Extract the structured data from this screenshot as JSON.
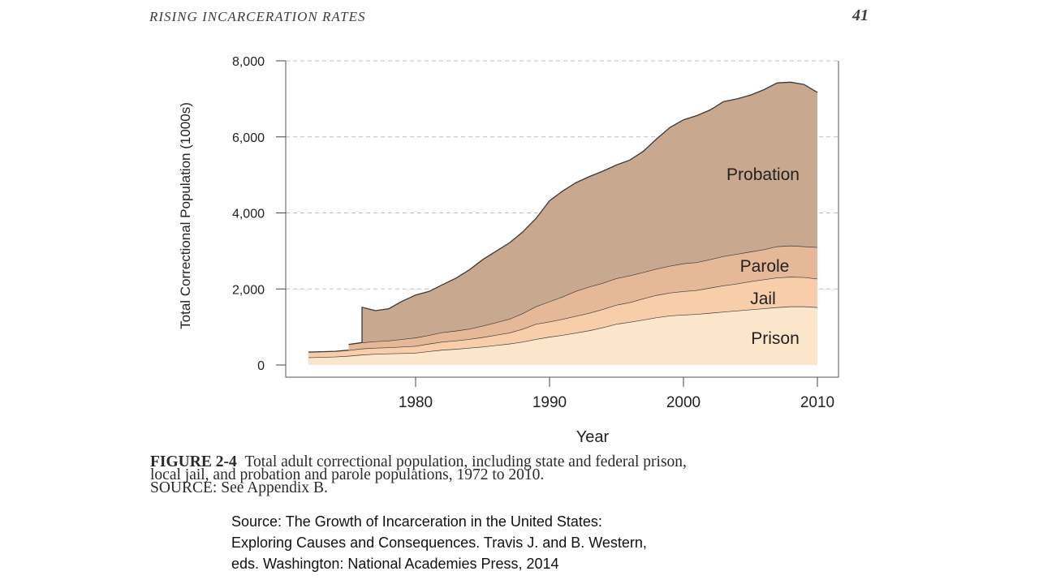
{
  "running_head": {
    "title": "RISING INCARCERATION RATES",
    "page": "41"
  },
  "caption": {
    "figure_label": "FIGURE 2-4",
    "line1": "Total adult correctional population, including state and federal prison,",
    "line2": "local jail, and probation and parole populations, 1972 to 2010.",
    "line3": "SOURCE: See Appendix B."
  },
  "source_note": {
    "line1": "Source: The Growth of Incarceration in the United States:",
    "line2": "Exploring Causes and Consequences. Travis J. and B. Western,",
    "line3": "eds. Washington: National Academies Press, 2014"
  },
  "colors": {
    "prison": "#fbe6cb",
    "jail": "#f7cdaa",
    "parole": "#e5b898",
    "probation": "#c9a890",
    "line": "#3a3a3a",
    "grid": "#bdbdbd"
  },
  "chart_data": {
    "type": "area",
    "stacked": true,
    "xlabel": "Year",
    "ylabel": "Total Correctional Population (1000s)",
    "xlim": [
      1972,
      2010
    ],
    "ylim": [
      0,
      8000
    ],
    "x_ticks": [
      "1980",
      "1990",
      "2000",
      "2010"
    ],
    "x_tick_values": [
      1980,
      1990,
      2000,
      2010
    ],
    "y_ticks": [
      "0",
      "2,000",
      "4,000",
      "6,000",
      "8,000"
    ],
    "y_tick_values": [
      0,
      2000,
      4000,
      6000,
      8000
    ],
    "grid": "horizontal dashed",
    "x": [
      1972,
      1973,
      1974,
      1975,
      1976,
      1977,
      1978,
      1979,
      1980,
      1981,
      1982,
      1983,
      1984,
      1985,
      1986,
      1987,
      1988,
      1989,
      1990,
      1991,
      1992,
      1993,
      1994,
      1995,
      1996,
      1997,
      1998,
      1999,
      2000,
      2001,
      2002,
      2003,
      2004,
      2005,
      2006,
      2007,
      2008,
      2009,
      2010
    ],
    "series": [
      {
        "name": "Prison",
        "values": [
          200,
          210,
          220,
          240,
          270,
          290,
          300,
          310,
          320,
          360,
          400,
          420,
          450,
          480,
          520,
          560,
          610,
          680,
          740,
          790,
          850,
          910,
          990,
          1080,
          1130,
          1190,
          1250,
          1300,
          1320,
          1340,
          1370,
          1400,
          1430,
          1460,
          1490,
          1520,
          1540,
          1540,
          1520
        ],
        "start_year": 1972
      },
      {
        "name": "Jail",
        "values": [
          140,
          140,
          140,
          150,
          160,
          160,
          160,
          170,
          180,
          200,
          210,
          220,
          230,
          250,
          270,
          290,
          340,
          400,
          400,
          420,
          440,
          460,
          480,
          500,
          520,
          560,
          590,
          600,
          620,
          630,
          660,
          690,
          710,
          740,
          760,
          780,
          780,
          770,
          750
        ],
        "start_year": 1972
      },
      {
        "name": "Parole",
        "values": [
          null,
          null,
          null,
          150,
          160,
          170,
          180,
          200,
          220,
          225,
          250,
          260,
          270,
          300,
          330,
          360,
          410,
          460,
          530,
          590,
          660,
          690,
          690,
          700,
          700,
          690,
          690,
          710,
          730,
          730,
          750,
          770,
          780,
          780,
          790,
          820,
          820,
          810,
          830
        ],
        "start_year": 1975
      },
      {
        "name": "Probation",
        "values": [
          null,
          null,
          null,
          null,
          930,
          810,
          840,
          1000,
          1120,
          1150,
          1250,
          1380,
          1550,
          1740,
          1870,
          2000,
          2140,
          2320,
          2650,
          2780,
          2850,
          2900,
          2940,
          2980,
          3040,
          3180,
          3420,
          3640,
          3780,
          3860,
          3930,
          4070,
          4080,
          4120,
          4200,
          4300,
          4300,
          4260,
          4070
        ],
        "start_year": 1976
      }
    ],
    "label_positions_note": "Labels placed inside their bands"
  }
}
